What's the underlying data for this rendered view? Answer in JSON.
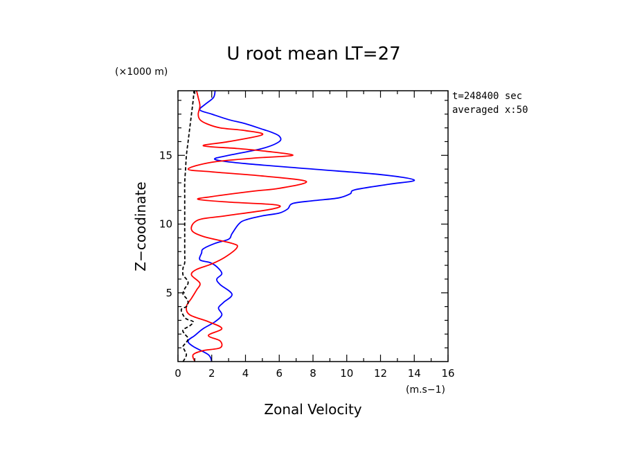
{
  "chart_data": {
    "type": "line",
    "title": "U root mean LT=27",
    "xlabel": "Zonal Velocity",
    "ylabel": "Z−coodinate",
    "x_unit": "(m.s−1)",
    "y_unit": "(×1000 m)",
    "annotations": [
      "t=248400 sec",
      "averaged  x:50"
    ],
    "xlim": [
      0,
      16
    ],
    "ylim": [
      0,
      19.7
    ],
    "x_ticks": [
      0,
      2,
      4,
      6,
      8,
      10,
      12,
      14,
      16
    ],
    "y_ticks": [
      5,
      10,
      15
    ],
    "x_tick_labels": [
      "0",
      "2",
      "4",
      "6",
      "8",
      "10",
      "12",
      "14",
      "16"
    ],
    "y_tick_labels": [
      "5",
      "10",
      "15"
    ],
    "grid": false,
    "series": [
      {
        "color": "#0000ff",
        "dash": "solid",
        "points": [
          [
            2.0,
            0.0
          ],
          [
            1.8,
            0.5
          ],
          [
            0.9,
            1.1
          ],
          [
            0.6,
            1.5
          ],
          [
            1.0,
            1.9
          ],
          [
            1.5,
            2.4
          ],
          [
            2.2,
            2.9
          ],
          [
            2.6,
            3.4
          ],
          [
            2.4,
            3.9
          ],
          [
            2.7,
            4.3
          ],
          [
            3.2,
            4.9
          ],
          [
            2.5,
            5.6
          ],
          [
            2.3,
            6.0
          ],
          [
            2.6,
            6.4
          ],
          [
            2.3,
            6.9
          ],
          [
            1.9,
            7.2
          ],
          [
            1.3,
            7.4
          ],
          [
            1.4,
            7.9
          ],
          [
            1.5,
            8.2
          ],
          [
            2.2,
            8.6
          ],
          [
            3.0,
            8.9
          ],
          [
            3.2,
            9.3
          ],
          [
            3.6,
            10.0
          ],
          [
            4.0,
            10.3
          ],
          [
            5.0,
            10.6
          ],
          [
            6.0,
            10.8
          ],
          [
            6.5,
            11.1
          ],
          [
            6.8,
            11.5
          ],
          [
            8.0,
            11.7
          ],
          [
            9.5,
            11.9
          ],
          [
            10.2,
            12.2
          ],
          [
            10.5,
            12.5
          ],
          [
            12.5,
            12.9
          ],
          [
            14.0,
            13.2
          ],
          [
            12.0,
            13.6
          ],
          [
            8.0,
            14.0
          ],
          [
            4.0,
            14.4
          ],
          [
            2.2,
            14.7
          ],
          [
            3.0,
            15.0
          ],
          [
            5.0,
            15.5
          ],
          [
            6.0,
            16.0
          ],
          [
            6.0,
            16.4
          ],
          [
            5.5,
            16.7
          ],
          [
            5.0,
            16.9
          ],
          [
            4.0,
            17.3
          ],
          [
            3.0,
            17.6
          ],
          [
            2.0,
            18.0
          ],
          [
            1.3,
            18.3
          ],
          [
            1.6,
            18.7
          ],
          [
            2.1,
            19.2
          ],
          [
            2.2,
            19.7
          ]
        ]
      },
      {
        "color": "#ff0000",
        "dash": "solid",
        "points": [
          [
            1.0,
            0.0
          ],
          [
            0.9,
            0.5
          ],
          [
            1.5,
            0.8
          ],
          [
            2.5,
            1.0
          ],
          [
            2.5,
            1.5
          ],
          [
            1.8,
            1.9
          ],
          [
            2.6,
            2.4
          ],
          [
            1.8,
            2.9
          ],
          [
            0.7,
            3.4
          ],
          [
            0.5,
            4.0
          ],
          [
            0.8,
            4.6
          ],
          [
            1.1,
            5.2
          ],
          [
            1.3,
            5.7
          ],
          [
            0.8,
            6.3
          ],
          [
            1.1,
            6.7
          ],
          [
            2.0,
            7.1
          ],
          [
            2.8,
            7.6
          ],
          [
            3.5,
            8.3
          ],
          [
            3.2,
            8.6
          ],
          [
            1.5,
            9.1
          ],
          [
            0.8,
            9.6
          ],
          [
            1.2,
            10.3
          ],
          [
            2.8,
            10.6
          ],
          [
            5.6,
            11.1
          ],
          [
            5.8,
            11.4
          ],
          [
            3.0,
            11.6
          ],
          [
            1.2,
            11.8
          ],
          [
            2.0,
            12.0
          ],
          [
            4.5,
            12.4
          ],
          [
            6.0,
            12.6
          ],
          [
            7.6,
            13.1
          ],
          [
            5.0,
            13.5
          ],
          [
            2.0,
            13.8
          ],
          [
            0.6,
            14.0
          ],
          [
            2.0,
            14.5
          ],
          [
            4.5,
            14.8
          ],
          [
            6.8,
            15.0
          ],
          [
            5.2,
            15.3
          ],
          [
            3.5,
            15.5
          ],
          [
            1.5,
            15.7
          ],
          [
            3.0,
            16.0
          ],
          [
            5.0,
            16.5
          ],
          [
            4.0,
            16.8
          ],
          [
            2.5,
            17.0
          ],
          [
            1.7,
            17.3
          ],
          [
            1.3,
            17.6
          ],
          [
            1.2,
            18.0
          ],
          [
            1.3,
            18.6
          ],
          [
            1.2,
            19.2
          ],
          [
            1.1,
            19.7
          ]
        ]
      },
      {
        "color": "#000000",
        "dash": "dashed",
        "points": [
          [
            0.3,
            0.0
          ],
          [
            0.4,
            0.2
          ],
          [
            0.5,
            0.5
          ],
          [
            0.4,
            0.8
          ],
          [
            0.3,
            1.1
          ],
          [
            0.5,
            1.4
          ],
          [
            0.6,
            1.7
          ],
          [
            0.4,
            2.0
          ],
          [
            0.3,
            2.3
          ],
          [
            0.7,
            2.6
          ],
          [
            0.9,
            2.9
          ],
          [
            0.5,
            3.1
          ],
          [
            0.3,
            3.4
          ],
          [
            0.2,
            3.8
          ],
          [
            0.5,
            4.0
          ],
          [
            0.6,
            4.3
          ],
          [
            0.5,
            4.6
          ],
          [
            0.3,
            4.9
          ],
          [
            0.4,
            5.3
          ],
          [
            0.6,
            5.7
          ],
          [
            0.5,
            6.0
          ],
          [
            0.3,
            6.3
          ],
          [
            0.3,
            6.8
          ],
          [
            0.4,
            7.2
          ],
          [
            0.4,
            8.0
          ],
          [
            0.4,
            9.0
          ],
          [
            0.4,
            10.0
          ],
          [
            0.4,
            11.0
          ],
          [
            0.4,
            12.0
          ],
          [
            0.4,
            13.0
          ],
          [
            0.45,
            14.0
          ],
          [
            0.5,
            15.0
          ],
          [
            0.6,
            16.0
          ],
          [
            0.7,
            17.0
          ],
          [
            0.8,
            18.0
          ],
          [
            0.9,
            19.0
          ],
          [
            0.95,
            19.7
          ]
        ]
      }
    ]
  }
}
